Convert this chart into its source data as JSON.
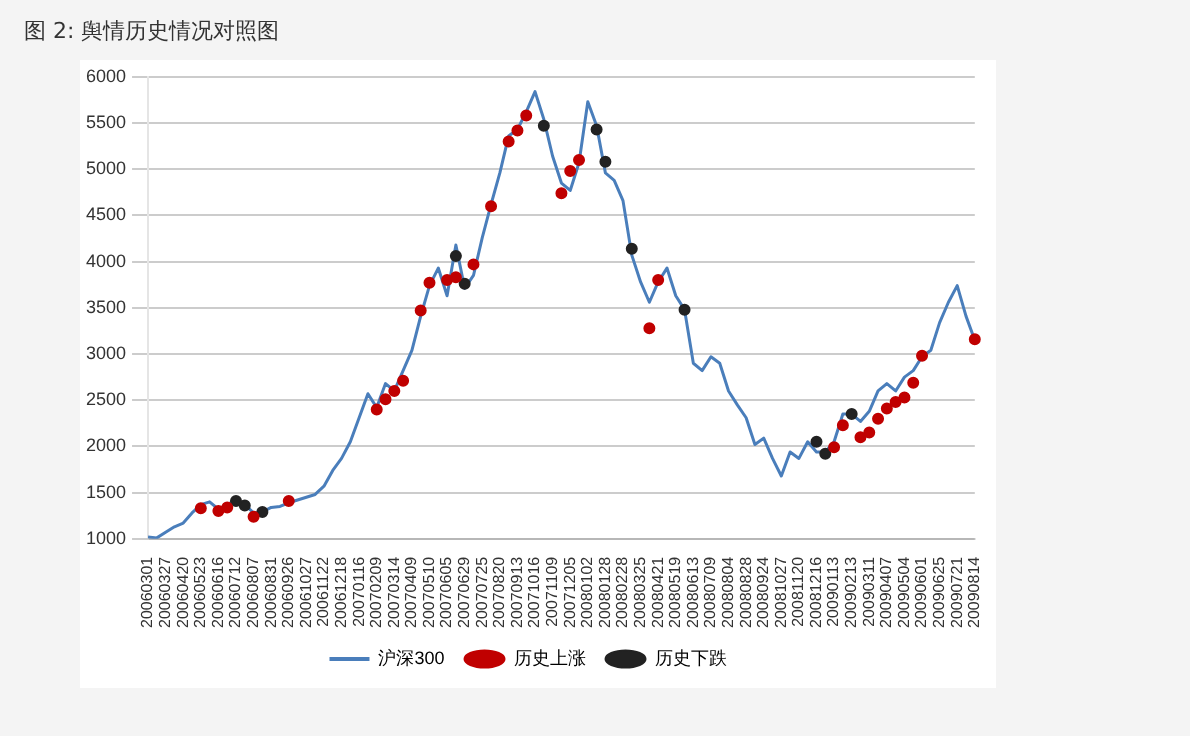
{
  "chart_data": {
    "type": "line",
    "title": "图 2: 舆情历史情况对照图",
    "categories": [
      "20060301",
      null,
      "20060327",
      null,
      "20060420",
      null,
      "20060523",
      null,
      "20060616",
      null,
      "20060712",
      null,
      "20060807",
      null,
      "20060831",
      null,
      "20060926",
      null,
      "20061027",
      null,
      "20061122",
      null,
      "20061218",
      null,
      "20070116",
      null,
      "20070209",
      null,
      "20070314",
      null,
      "20070409",
      null,
      "20070510",
      null,
      "20070605",
      null,
      "20070629",
      null,
      "20070725",
      null,
      "20070820",
      null,
      "20070913",
      null,
      "20071016",
      null,
      "20071109",
      null,
      "20071205",
      null,
      "20080102",
      null,
      "20080128",
      null,
      "20080228",
      null,
      "20080325",
      null,
      "20080421",
      null,
      "20080519",
      null,
      "20080613",
      null,
      "20080709",
      null,
      "20080804",
      null,
      "20080828",
      null,
      "20080924",
      null,
      "20081027",
      null,
      "20081120",
      null,
      "20081216",
      null,
      "20090113",
      null,
      "20090213",
      null,
      "20090311",
      null,
      "20090407",
      null,
      "20090504",
      null,
      "20090601",
      null,
      "20090625",
      null,
      "20090721",
      null,
      "20090814"
    ],
    "series": [
      {
        "name": "沪深300",
        "color": "#4a7ebb",
        "marker": "none",
        "values": [
          1020,
          1010,
          1070,
          1130,
          1170,
          1280,
          1370,
          1400,
          1320,
          1370,
          1420,
          1370,
          1280,
          1290,
          1340,
          1350,
          1390,
          1420,
          1450,
          1480,
          1570,
          1740,
          1870,
          2050,
          2310,
          2570,
          2420,
          2680,
          2600,
          2820,
          3040,
          3410,
          3740,
          3930,
          3630,
          4180,
          3710,
          3850,
          4260,
          4620,
          4960,
          5360,
          5430,
          5620,
          5840,
          5540,
          5140,
          4850,
          4770,
          5070,
          5730,
          5470,
          4960,
          4880,
          4660,
          4070,
          3780,
          3560,
          3780,
          3930,
          3630,
          3480,
          2900,
          2820,
          2970,
          2900,
          2600,
          2450,
          2310,
          2020,
          2090,
          1870,
          1680,
          1940,
          1870,
          2050,
          1940,
          1940,
          2050,
          2350,
          2350,
          2270,
          2380,
          2600,
          2680,
          2600,
          2750,
          2820,
          2970,
          3040,
          3340,
          3560,
          3740,
          3410,
          3150
        ]
      },
      {
        "name": "历史上涨",
        "type": "scatter",
        "color": "#c00000",
        "marker": "circle",
        "values": [
          null,
          null,
          null,
          null,
          null,
          null,
          1330,
          null,
          1300,
          1340,
          null,
          null,
          1240,
          null,
          null,
          null,
          1410,
          null,
          null,
          null,
          null,
          null,
          null,
          null,
          null,
          null,
          2400,
          2510,
          2600,
          2710,
          null,
          3470,
          3770,
          null,
          3800,
          3830,
          null,
          3970,
          null,
          4600,
          null,
          5300,
          5420,
          5580,
          null,
          null,
          null,
          4740,
          4980,
          5100,
          null,
          null,
          null,
          null,
          null,
          null,
          null,
          3280,
          3800,
          null,
          null,
          null,
          null,
          null,
          null,
          null,
          null,
          null,
          null,
          null,
          null,
          null,
          null,
          null,
          null,
          null,
          null,
          null,
          1990,
          2230,
          null,
          2100,
          2150,
          2300,
          2410,
          2480,
          2530,
          2690,
          2980,
          null,
          null,
          null,
          null,
          null,
          3160
        ]
      },
      {
        "name": "历史下跌",
        "type": "scatter",
        "color": "#222222",
        "marker": "circle",
        "values": [
          null,
          null,
          null,
          null,
          null,
          null,
          null,
          null,
          null,
          null,
          1410,
          1360,
          null,
          1290,
          null,
          null,
          null,
          null,
          null,
          null,
          null,
          null,
          null,
          null,
          null,
          null,
          null,
          null,
          null,
          null,
          null,
          null,
          null,
          null,
          null,
          4060,
          3760,
          null,
          null,
          null,
          null,
          null,
          null,
          null,
          null,
          5470,
          null,
          null,
          null,
          null,
          null,
          5430,
          5080,
          null,
          null,
          4140,
          null,
          null,
          null,
          null,
          null,
          3480,
          null,
          null,
          null,
          null,
          null,
          null,
          null,
          null,
          null,
          null,
          null,
          null,
          null,
          null,
          2050,
          1920,
          null,
          null,
          2350,
          null,
          null,
          null,
          null,
          null,
          null,
          null,
          null,
          null,
          null,
          null,
          null,
          null,
          null
        ]
      }
    ],
    "ylim": [
      1000,
      6000
    ],
    "yticks": [
      1000,
      1500,
      2000,
      2500,
      3000,
      3500,
      4000,
      4500,
      5000,
      5500,
      6000
    ],
    "grid": "y",
    "legend": "bottom"
  }
}
